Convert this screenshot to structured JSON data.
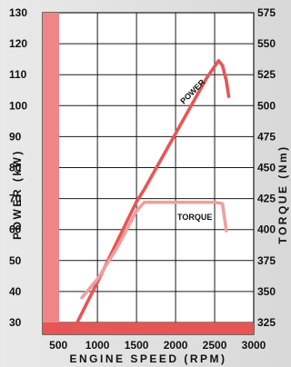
{
  "chart_data": {
    "type": "line",
    "xlabel": "ENGINE SPEED (RPM)",
    "ylabel_left": "POWER (kW)",
    "ylabel_right": "TORQUE (Nm)",
    "x_ticks": [
      500,
      1000,
      1500,
      2000,
      2500,
      3000
    ],
    "y_left_ticks": [
      30,
      40,
      50,
      60,
      70,
      80,
      90,
      100,
      110,
      120,
      130
    ],
    "y_right_ticks": [
      325,
      350,
      375,
      400,
      425,
      450,
      475,
      500,
      525,
      550,
      575
    ],
    "xlim": [
      300,
      3000
    ],
    "ylim_left": [
      30,
      130
    ],
    "ylim_right": [
      325,
      575
    ],
    "grid": true,
    "series": [
      {
        "name": "POWER",
        "axis": "left",
        "color": "#e85555",
        "x": [
          750,
          1000,
          1250,
          1500,
          1600,
          2000,
          2400,
          2550,
          2600,
          2650,
          2680
        ],
        "y": [
          30.5,
          43,
          56,
          69,
          73,
          91,
          109,
          114.5,
          113,
          108,
          103
        ]
      },
      {
        "name": "TORQUE",
        "axis": "right",
        "color": "#eda0a0",
        "x": [
          800,
          1000,
          1250,
          1500,
          1600,
          2000,
          2500,
          2600,
          2650
        ],
        "y": [
          345,
          360,
          385,
          415,
          422,
          422,
          422,
          421,
          399
        ]
      }
    ]
  },
  "colors": {
    "left_band": "#ef8585",
    "bottom_band": "#e85555",
    "grid": "#1a1a1a",
    "plot_bg": "#ffffff"
  }
}
